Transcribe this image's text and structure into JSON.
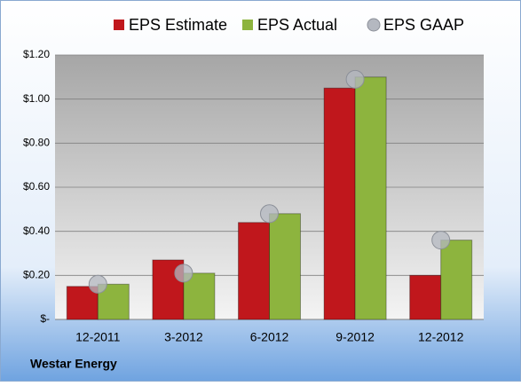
{
  "chart_data": {
    "type": "bar",
    "categories": [
      "12-2011",
      "3-2012",
      "6-2012",
      "9-2012",
      "12-2012"
    ],
    "series": [
      {
        "name": "EPS Estimate",
        "color": "#c0171c",
        "values": [
          0.15,
          0.27,
          0.44,
          1.05,
          0.2
        ]
      },
      {
        "name": "EPS Actual",
        "color": "#8db43e",
        "values": [
          0.16,
          0.21,
          0.48,
          1.1,
          0.36
        ]
      },
      {
        "name": "EPS GAAP",
        "color": "#b4b8c0",
        "type": "scatter",
        "values": [
          0.16,
          0.21,
          0.48,
          1.09,
          0.36
        ]
      }
    ],
    "ylim": [
      0,
      1.2
    ],
    "yticks": [
      {
        "value": 0,
        "label": "$-"
      },
      {
        "value": 0.2,
        "label": "$0.20"
      },
      {
        "value": 0.4,
        "label": "$0.40"
      },
      {
        "value": 0.6,
        "label": "$0.60"
      },
      {
        "value": 0.8,
        "label": "$0.80"
      },
      {
        "value": 1.0,
        "label": "$1.00"
      },
      {
        "value": 1.2,
        "label": "$1.20"
      }
    ],
    "grid": true,
    "legend": "top",
    "footer": "Westar Energy"
  }
}
